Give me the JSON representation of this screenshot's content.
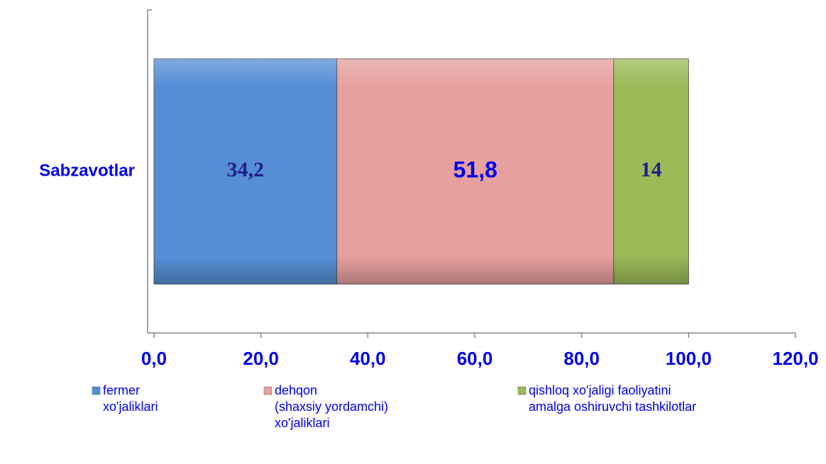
{
  "chart_data": {
    "type": "stacked_barh",
    "categories": [
      "Sabzavotlar"
    ],
    "series": [
      {
        "name": "fermer\nxo'jaliklari",
        "color": "#558ed5",
        "values": [
          34.2
        ],
        "value_labels": [
          "34,2"
        ]
      },
      {
        "name": "dehqon\n(shaxsiy yordamchi)\nxo'jaliklari",
        "color": "#e6a09e",
        "values": [
          51.8
        ],
        "value_labels": [
          "51,8"
        ]
      },
      {
        "name": "qishloq xo'jaligi faoliyatini\namalga oshiruvchi tashkilotlar",
        "color": "#9bbb59",
        "values": [
          14
        ],
        "value_labels": [
          "14"
        ]
      }
    ],
    "xlim": [
      0,
      120
    ],
    "xticks": [
      {
        "value": 0,
        "label": "0,0"
      },
      {
        "value": 20,
        "label": "20,0"
      },
      {
        "value": 40,
        "label": "40,0"
      },
      {
        "value": 60,
        "label": "60,0"
      },
      {
        "value": 80,
        "label": "80,0"
      },
      {
        "value": 100,
        "label": "100,0"
      },
      {
        "value": 120,
        "label": "120,0"
      }
    ],
    "legend": "bottom"
  }
}
